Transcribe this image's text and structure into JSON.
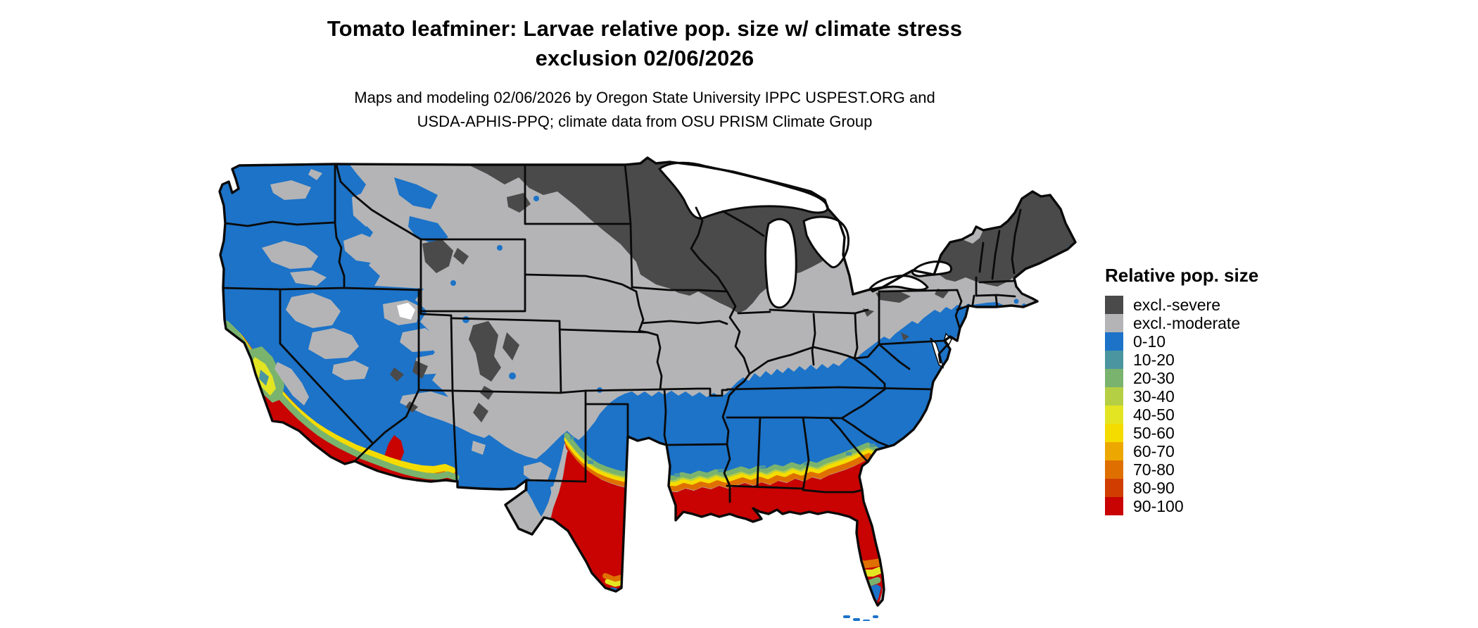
{
  "title": {
    "line1": "Tomato leafminer: Larvae relative pop. size w/ climate stress",
    "line2": "exclusion 02/06/2026"
  },
  "subtitle": {
    "line1": "Maps and modeling 02/06/2026 by Oregon State University IPPC USPEST.ORG and",
    "line2": "USDA-APHIS-PPQ; climate data from OSU PRISM Climate Group"
  },
  "legend": {
    "title": "Relative pop. size",
    "items": [
      {
        "label": "excl.-severe",
        "color": "#4a4a4a"
      },
      {
        "label": "excl.-moderate",
        "color": "#b4b4b6"
      },
      {
        "label": "0-10",
        "color": "#1c73c8"
      },
      {
        "label": "10-20",
        "color": "#4b95a0"
      },
      {
        "label": "20-30",
        "color": "#7ab36e"
      },
      {
        "label": "30-40",
        "color": "#b5cf44"
      },
      {
        "label": "40-50",
        "color": "#e3e523"
      },
      {
        "label": "50-60",
        "color": "#f5dc00"
      },
      {
        "label": "60-70",
        "color": "#eca800"
      },
      {
        "label": "70-80",
        "color": "#df7000"
      },
      {
        "label": "80-90",
        "color": "#d13d00"
      },
      {
        "label": "90-100",
        "color": "#c80301"
      }
    ]
  },
  "map": {
    "type": "choropleth-us-map",
    "water_color": "#ffffff",
    "border_color": "#000000"
  }
}
